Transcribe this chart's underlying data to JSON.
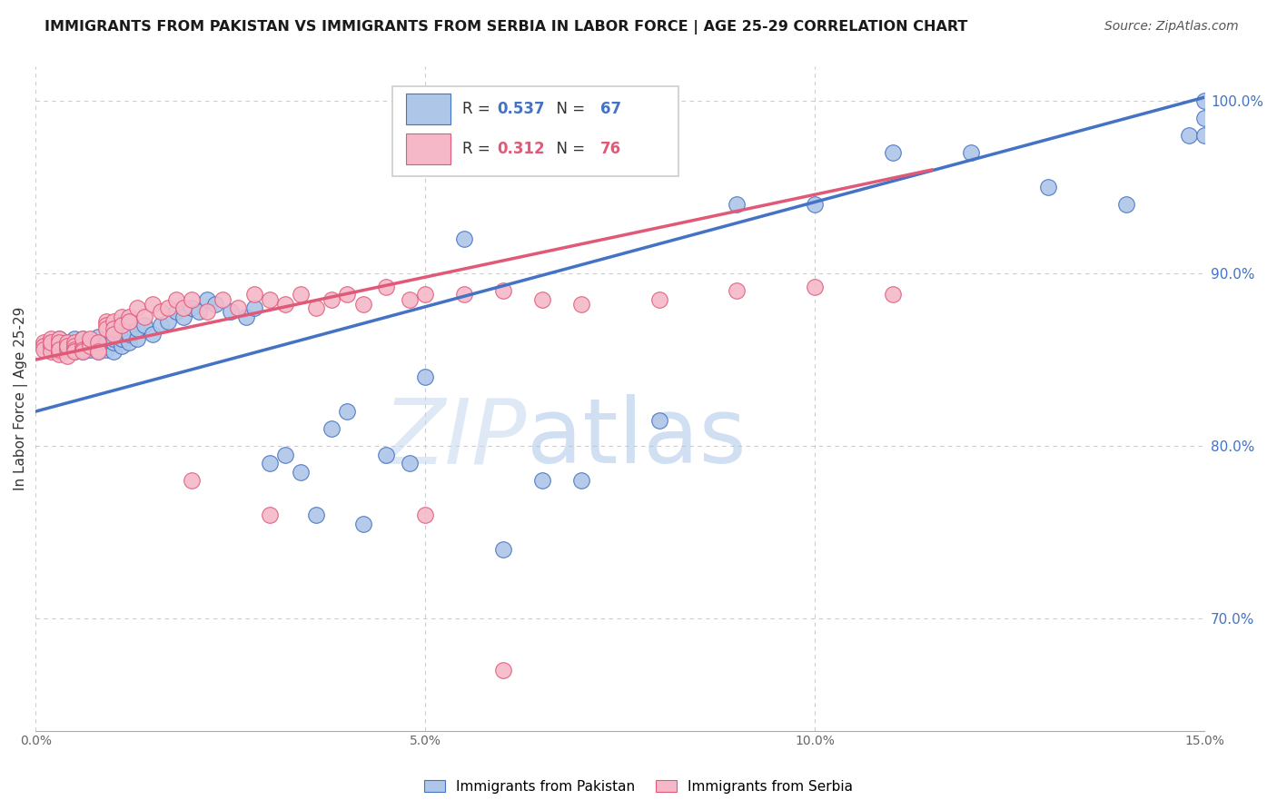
{
  "title": "IMMIGRANTS FROM PAKISTAN VS IMMIGRANTS FROM SERBIA IN LABOR FORCE | AGE 25-29 CORRELATION CHART",
  "source": "Source: ZipAtlas.com",
  "ylabel": "In Labor Force | Age 25-29",
  "xlim": [
    0.0,
    0.15
  ],
  "ylim": [
    0.635,
    1.02
  ],
  "ytick_labels_right": [
    "100.0%",
    "90.0%",
    "80.0%",
    "70.0%"
  ],
  "ytick_positions_right": [
    1.0,
    0.9,
    0.8,
    0.7
  ],
  "grid_color": "#cccccc",
  "background_color": "#ffffff",
  "pakistan_color": "#aec6e8",
  "serbia_color": "#f4b8c8",
  "pakistan_line_color": "#4472c4",
  "serbia_line_color": "#e05a78",
  "legend_pakistan_R": "0.537",
  "legend_pakistan_N": "67",
  "legend_serbia_R": "0.312",
  "legend_serbia_N": "76",
  "watermark": "ZIPatlas",
  "pakistan_scatter_x": [
    0.002,
    0.003,
    0.003,
    0.004,
    0.004,
    0.005,
    0.005,
    0.005,
    0.006,
    0.006,
    0.006,
    0.007,
    0.007,
    0.007,
    0.008,
    0.008,
    0.008,
    0.009,
    0.009,
    0.009,
    0.01,
    0.01,
    0.01,
    0.011,
    0.011,
    0.012,
    0.012,
    0.013,
    0.013,
    0.014,
    0.015,
    0.016,
    0.017,
    0.018,
    0.019,
    0.02,
    0.021,
    0.022,
    0.023,
    0.025,
    0.027,
    0.028,
    0.03,
    0.032,
    0.034,
    0.036,
    0.038,
    0.04,
    0.042,
    0.045,
    0.048,
    0.05,
    0.055,
    0.06,
    0.065,
    0.07,
    0.08,
    0.09,
    0.1,
    0.11,
    0.12,
    0.13,
    0.14,
    0.148,
    0.15,
    0.15,
    0.15
  ],
  "pakistan_scatter_y": [
    0.86,
    0.855,
    0.862,
    0.856,
    0.86,
    0.855,
    0.858,
    0.862,
    0.855,
    0.858,
    0.862,
    0.856,
    0.86,
    0.858,
    0.855,
    0.86,
    0.863,
    0.858,
    0.86,
    0.856,
    0.855,
    0.86,
    0.862,
    0.858,
    0.862,
    0.86,
    0.865,
    0.862,
    0.868,
    0.87,
    0.865,
    0.87,
    0.872,
    0.878,
    0.875,
    0.88,
    0.878,
    0.885,
    0.882,
    0.878,
    0.875,
    0.88,
    0.79,
    0.795,
    0.785,
    0.76,
    0.81,
    0.82,
    0.755,
    0.795,
    0.79,
    0.84,
    0.92,
    0.74,
    0.78,
    0.78,
    0.815,
    0.94,
    0.94,
    0.97,
    0.97,
    0.95,
    0.94,
    0.98,
    0.98,
    1.0,
    0.99
  ],
  "serbia_scatter_x": [
    0.001,
    0.001,
    0.001,
    0.002,
    0.002,
    0.002,
    0.002,
    0.003,
    0.003,
    0.003,
    0.003,
    0.003,
    0.003,
    0.004,
    0.004,
    0.004,
    0.004,
    0.004,
    0.005,
    0.005,
    0.005,
    0.005,
    0.006,
    0.006,
    0.006,
    0.006,
    0.007,
    0.007,
    0.007,
    0.008,
    0.008,
    0.008,
    0.009,
    0.009,
    0.009,
    0.01,
    0.01,
    0.01,
    0.011,
    0.011,
    0.012,
    0.012,
    0.013,
    0.014,
    0.015,
    0.016,
    0.017,
    0.018,
    0.019,
    0.02,
    0.022,
    0.024,
    0.026,
    0.028,
    0.03,
    0.032,
    0.034,
    0.036,
    0.038,
    0.04,
    0.042,
    0.045,
    0.048,
    0.05,
    0.055,
    0.06,
    0.065,
    0.07,
    0.08,
    0.09,
    0.1,
    0.11,
    0.02,
    0.03,
    0.05,
    0.06
  ],
  "serbia_scatter_y": [
    0.86,
    0.858,
    0.856,
    0.862,
    0.858,
    0.855,
    0.86,
    0.858,
    0.862,
    0.855,
    0.853,
    0.86,
    0.856,
    0.858,
    0.86,
    0.856,
    0.852,
    0.858,
    0.86,
    0.858,
    0.856,
    0.855,
    0.858,
    0.862,
    0.856,
    0.855,
    0.86,
    0.858,
    0.862,
    0.856,
    0.86,
    0.855,
    0.872,
    0.87,
    0.868,
    0.872,
    0.868,
    0.865,
    0.875,
    0.87,
    0.875,
    0.872,
    0.88,
    0.875,
    0.882,
    0.878,
    0.88,
    0.885,
    0.88,
    0.885,
    0.878,
    0.885,
    0.88,
    0.888,
    0.885,
    0.882,
    0.888,
    0.88,
    0.885,
    0.888,
    0.882,
    0.892,
    0.885,
    0.888,
    0.888,
    0.89,
    0.885,
    0.882,
    0.885,
    0.89,
    0.892,
    0.888,
    0.78,
    0.76,
    0.76,
    0.67
  ],
  "pakistan_trend_x": [
    0.0,
    0.15
  ],
  "pakistan_trend_y": [
    0.82,
    1.002
  ],
  "serbia_trend_x": [
    0.0,
    0.115
  ],
  "serbia_trend_y": [
    0.85,
    0.96
  ]
}
